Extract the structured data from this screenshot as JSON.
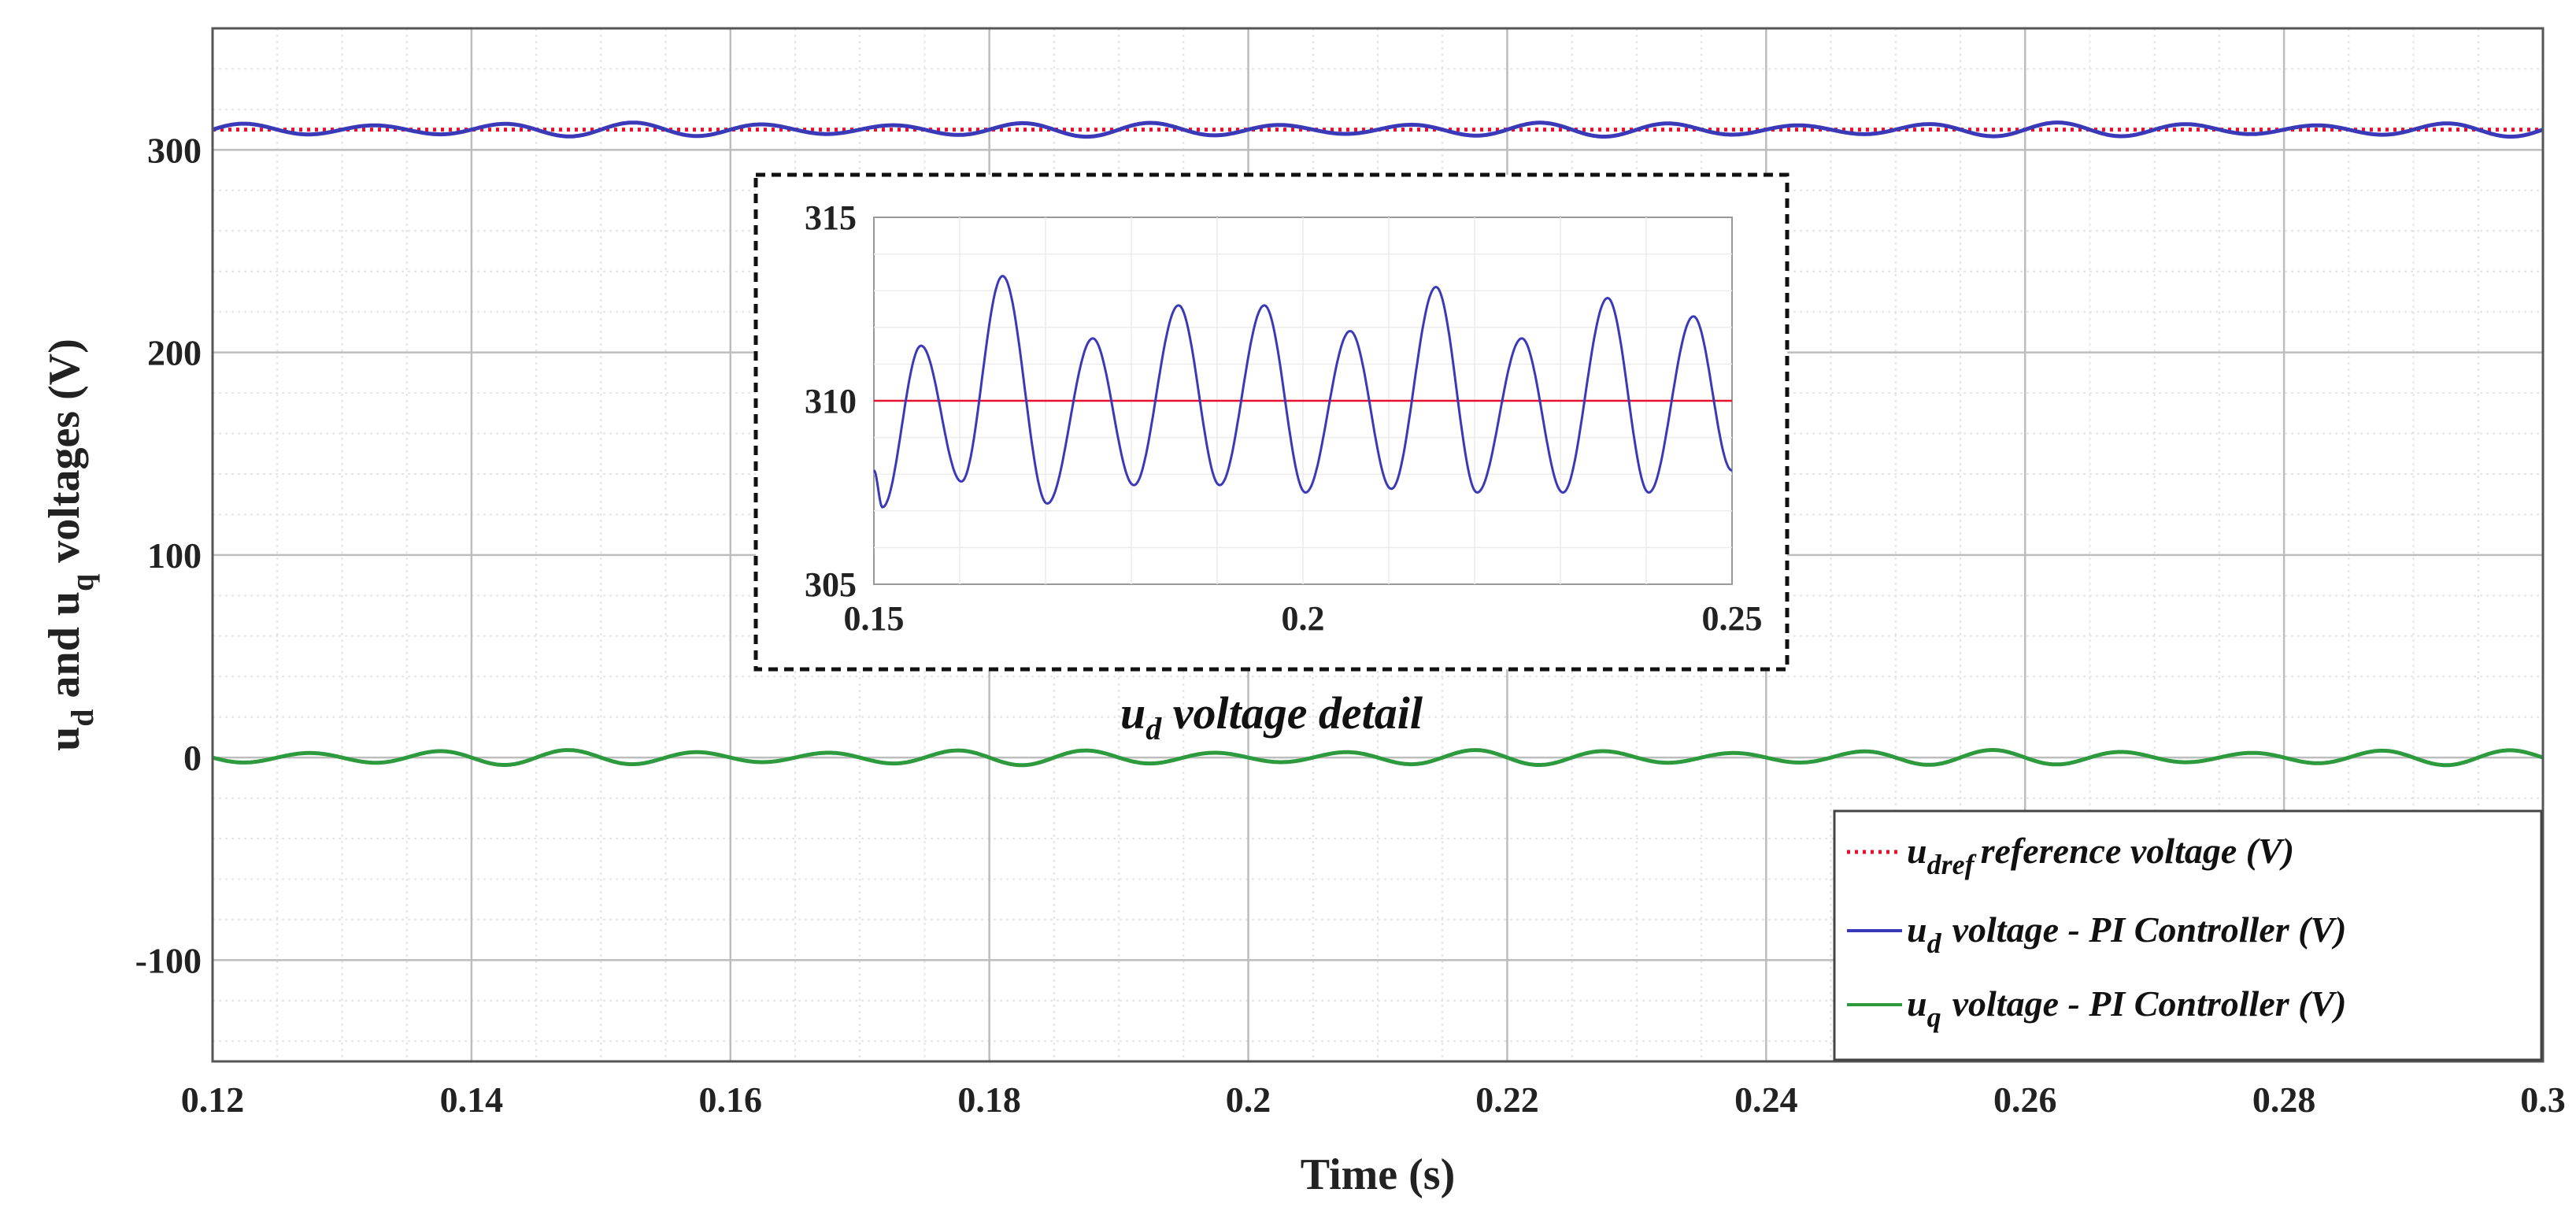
{
  "chart_data": {
    "type": "line",
    "xlabel": "Time (s)",
    "ylabel_parts": {
      "pre": "u",
      "sub1": "d",
      "mid": " and u",
      "sub2": "q",
      "post": " voltages (V)"
    },
    "xlim": [
      0.12,
      0.3
    ],
    "ylim": [
      -150,
      360
    ],
    "xticks": [
      0.12,
      0.14,
      0.16,
      0.18,
      0.2,
      0.22,
      0.24,
      0.26,
      0.28,
      0.3
    ],
    "xtick_labels": [
      "0.12",
      "0.14",
      "0.16",
      "0.18",
      "0.2",
      "0.22",
      "0.24",
      "0.26",
      "0.28",
      "0.3"
    ],
    "yticks": [
      -100,
      0,
      100,
      200,
      300
    ],
    "ytick_labels": [
      "-100",
      "0",
      "100",
      "200",
      "300"
    ],
    "grid": true,
    "series": [
      {
        "name": "udref reference voltage (V)",
        "color": "#e8112d",
        "style": "dotted",
        "kind": "constant",
        "value": 310
      },
      {
        "name": "ud voltage - PI Controller (V)",
        "color": "#3a3ab8",
        "style": "solid",
        "kind": "oscillation",
        "mean": 310,
        "amplitude": 2.8,
        "period": 0.01
      },
      {
        "name": "uq voltage - PI Controller (V)",
        "color": "#2e9a3e",
        "style": "solid",
        "kind": "oscillation",
        "mean": 0,
        "amplitude": 3.0,
        "period": 0.01
      }
    ],
    "legend": {
      "location": "bottom-right",
      "items": [
        {
          "pre": "u",
          "sub": "dref",
          "text": "reference voltage (V)",
          "color": "#e8112d",
          "style": "dotted"
        },
        {
          "pre": "u",
          "sub": "d",
          "text": "voltage - PI Controller (V)",
          "color": "#3a3ab8",
          "style": "solid"
        },
        {
          "pre": "u",
          "sub": "q",
          "text": "voltage - PI Controller (V)",
          "color": "#2e9a3e",
          "style": "solid"
        }
      ]
    },
    "inset": {
      "caption_pre": "u",
      "caption_sub": "d",
      "caption_text": " voltage detail",
      "xlim": [
        0.15,
        0.25
      ],
      "ylim": [
        305,
        315
      ],
      "xticks": [
        0.15,
        0.2,
        0.25
      ],
      "xtick_labels": [
        "0.15",
        "0.2",
        "0.25"
      ],
      "yticks": [
        305,
        310,
        315
      ],
      "ytick_labels": [
        "305",
        "310",
        "315"
      ],
      "reference": 310,
      "peaks": [
        {
          "t": 0.15,
          "v": 308.1
        },
        {
          "t": 0.151,
          "v": 307.1
        },
        {
          "t": 0.1555,
          "v": 311.5
        },
        {
          "t": 0.1602,
          "v": 307.8
        },
        {
          "t": 0.165,
          "v": 313.4
        },
        {
          "t": 0.1702,
          "v": 307.2
        },
        {
          "t": 0.1755,
          "v": 311.7
        },
        {
          "t": 0.1803,
          "v": 307.7
        },
        {
          "t": 0.1855,
          "v": 312.6
        },
        {
          "t": 0.1903,
          "v": 307.7
        },
        {
          "t": 0.1955,
          "v": 312.6
        },
        {
          "t": 0.2003,
          "v": 307.5
        },
        {
          "t": 0.2055,
          "v": 311.9
        },
        {
          "t": 0.2103,
          "v": 307.6
        },
        {
          "t": 0.2155,
          "v": 313.1
        },
        {
          "t": 0.2203,
          "v": 307.5
        },
        {
          "t": 0.2255,
          "v": 311.7
        },
        {
          "t": 0.2303,
          "v": 307.5
        },
        {
          "t": 0.2355,
          "v": 312.8
        },
        {
          "t": 0.2403,
          "v": 307.5
        },
        {
          "t": 0.2455,
          "v": 312.3
        },
        {
          "t": 0.25,
          "v": 308.1
        }
      ]
    }
  }
}
